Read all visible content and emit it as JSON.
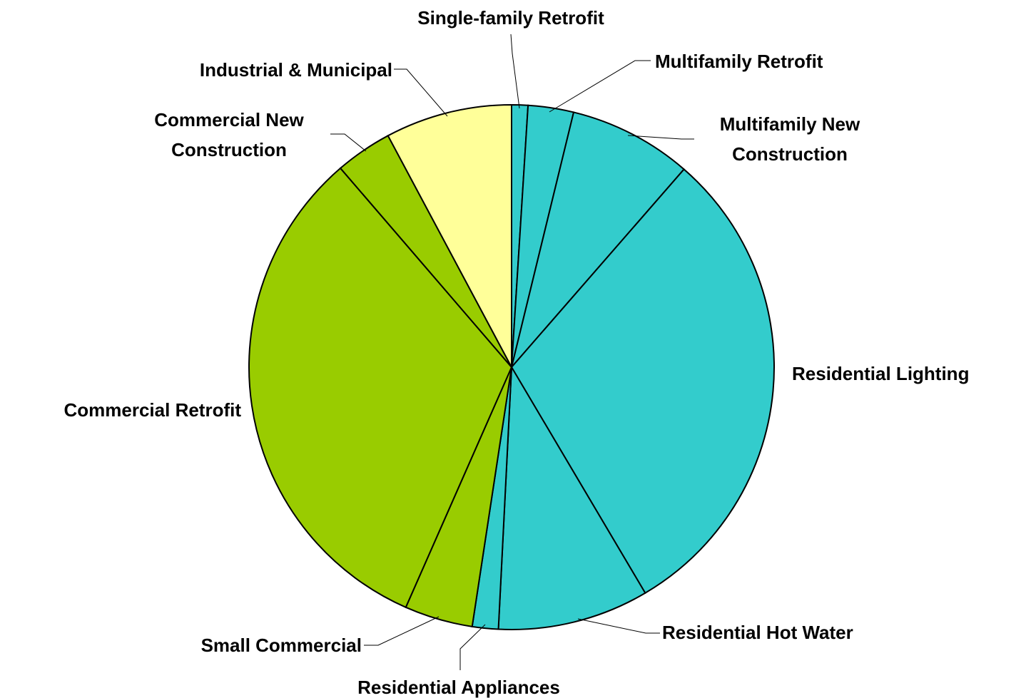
{
  "chart_data": {
    "type": "pie",
    "categories": [
      "Single-family Retrofit",
      "Multifamily Retrofit",
      "Multifamily New Construction",
      "Residential Lighting",
      "Residential Hot Water",
      "Residential Appliances",
      "Small Commercial",
      "Commercial Retrofit",
      "Commercial New Construction",
      "Industrial & Municipal"
    ],
    "values": [
      1.0,
      2.8,
      7.6,
      30.1,
      9.3,
      1.6,
      4.2,
      32.1,
      3.5,
      7.8
    ],
    "colors": [
      "#33cccc",
      "#33cccc",
      "#33cccc",
      "#33cccc",
      "#33cccc",
      "#33cccc",
      "#99cc00",
      "#99cc00",
      "#99cc00",
      "#ffff99"
    ]
  }
}
